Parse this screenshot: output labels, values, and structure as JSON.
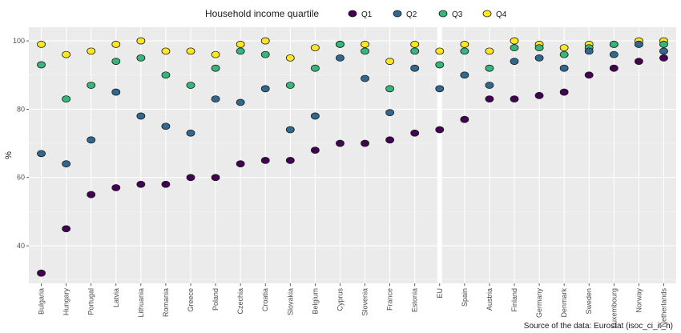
{
  "chart_data": {
    "type": "scatter",
    "legend": {
      "title": "Household income quartile",
      "placement": "top"
    },
    "ylabel": "%",
    "xlabel": "",
    "ylim": [
      29,
      104
    ],
    "yticks": [
      40,
      60,
      80,
      100
    ],
    "grid": true,
    "caption": "Source of the data: Eurostat (isoc_ci_it_h)",
    "categories": [
      "Bulgaria",
      "Hungary",
      "Portugal",
      "Latvia",
      "Lithuania",
      "Romania",
      "Greece",
      "Poland",
      "Czechia",
      "Croatia",
      "Slovakia",
      "Belgium",
      "Cyprus",
      "Slovenia",
      "France",
      "Estonia",
      "EU",
      "Spain",
      "Austria",
      "Finland",
      "Germany",
      "Denmark",
      "Sweden",
      "Luxembourg",
      "Norway",
      "Netherlands"
    ],
    "highlight_category": "EU",
    "series": [
      {
        "name": "Q1",
        "color": "#440154",
        "values": [
          32,
          45,
          55,
          57,
          58,
          58,
          60,
          60,
          64,
          65,
          65,
          68,
          70,
          70,
          71,
          73,
          74,
          77,
          83,
          83,
          84,
          85,
          90,
          92,
          94,
          95
        ]
      },
      {
        "name": "Q2",
        "color": "#31688e",
        "values": [
          67,
          64,
          71,
          85,
          78,
          75,
          73,
          83,
          82,
          86,
          74,
          78,
          95,
          89,
          79,
          92,
          86,
          90,
          87,
          94,
          95,
          92,
          97,
          96,
          99,
          97
        ]
      },
      {
        "name": "Q3",
        "color": "#35b779",
        "values": [
          93,
          83,
          87,
          94,
          95,
          90,
          87,
          92,
          97,
          96,
          87,
          92,
          99,
          97,
          86,
          97,
          93,
          97,
          92,
          98,
          98,
          96,
          98,
          99,
          99,
          99
        ]
      },
      {
        "name": "Q4",
        "color": "#fde725",
        "values": [
          99,
          96,
          97,
          99,
          100,
          97,
          97,
          96,
          99,
          100,
          95,
          98,
          99,
          99,
          94,
          99,
          97,
          99,
          97,
          100,
          99,
          98,
          99,
          99,
          100,
          100
        ]
      }
    ]
  }
}
